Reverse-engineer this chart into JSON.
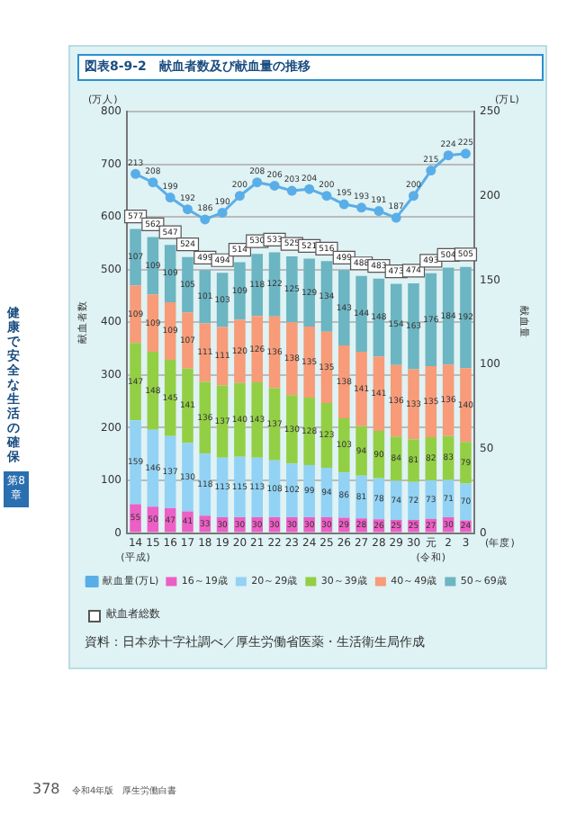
{
  "chart_data": {
    "type": "bar",
    "title": "図表8-9-2　献血者数及び献血量の推移",
    "xlabel": "(年度)",
    "ylabel": "献血者数",
    "y2label": "献血量",
    "categories": [
      "14",
      "15",
      "16",
      "17",
      "18",
      "19",
      "20",
      "21",
      "22",
      "23",
      "24",
      "25",
      "26",
      "27",
      "28",
      "29",
      "30",
      "元",
      "2",
      "3"
    ],
    "stacked": true,
    "data_labels": true,
    "legend": "bottom",
    "grid": "y",
    "marker": "circle",
    "ylim": [
      0,
      800
    ],
    "yticks": [
      0,
      100,
      200,
      300,
      400,
      500,
      600,
      700,
      800
    ],
    "y2lim": [
      0,
      250
    ],
    "y2ticks": [
      0,
      50,
      100,
      150,
      200,
      250
    ],
    "series": [
      {
        "name": "16～19歳",
        "color": "#ec5fc4",
        "values": [
          55,
          50,
          47,
          41,
          33,
          30,
          30,
          30,
          30,
          30,
          30,
          30,
          29,
          28,
          26,
          25,
          25,
          27,
          30,
          24
        ]
      },
      {
        "name": "20～29歳",
        "color": "#92d2f4",
        "values": [
          159,
          146,
          137,
          130,
          118,
          113,
          115,
          113,
          108,
          102,
          99,
          94,
          86,
          81,
          78,
          74,
          72,
          73,
          71,
          70
        ]
      },
      {
        "name": "30～39歳",
        "color": "#93cf44",
        "values": [
          147,
          148,
          145,
          141,
          136,
          137,
          140,
          143,
          137,
          130,
          128,
          123,
          103,
          94,
          90,
          84,
          81,
          82,
          83,
          79
        ]
      },
      {
        "name": "40～49歳",
        "color": "#f79b78",
        "values": [
          109,
          109,
          109,
          107,
          111,
          111,
          120,
          126,
          136,
          138,
          135,
          135,
          138,
          141,
          141,
          136,
          133,
          135,
          136,
          140
        ]
      },
      {
        "name": "50～69歳",
        "color": "#6cb5c2",
        "values": [
          107,
          109,
          109,
          105,
          101,
          103,
          109,
          118,
          122,
          125,
          129,
          134,
          143,
          144,
          148,
          154,
          163,
          176,
          184,
          192
        ]
      },
      {
        "name": "献血量(万L)",
        "type": "line",
        "axis": "y2",
        "color": "#5aaee8",
        "values": [
          213,
          208,
          199,
          192,
          186,
          190,
          200,
          208,
          206,
          203,
          204,
          200,
          195,
          193,
          191,
          187,
          200,
          215,
          224,
          225
        ]
      }
    ],
    "totals": [
      "577",
      "562",
      "547",
      "524",
      "499",
      "494",
      "514",
      "530",
      "533",
      "525",
      "521",
      "516",
      "499",
      "488",
      "483",
      "473",
      "474",
      "493",
      "504",
      "505"
    ],
    "annotations": [
      "(平成)",
      "(令和)",
      "献血者総数",
      "(万人)",
      "(万L)",
      "資料：日本赤十字社調べ／厚生労働省医薬・生活衛生局作成",
      "健康で安全な生活の確保",
      "第8章",
      "378",
      "令和4年版　厚生労働白書"
    ]
  }
}
